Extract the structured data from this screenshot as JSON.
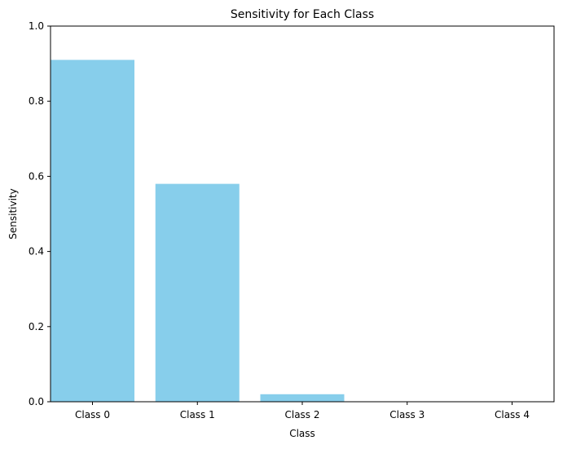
{
  "chart_data": {
    "type": "bar",
    "title": "Sensitivity for Each Class",
    "xlabel": "Class",
    "ylabel": "Sensitivity",
    "categories": [
      "Class 0",
      "Class 1",
      "Class 2",
      "Class 3",
      "Class 4"
    ],
    "values": [
      0.91,
      0.58,
      0.02,
      0.0,
      0.0
    ],
    "ylim": [
      0,
      1
    ],
    "yticks": [
      "0.0",
      "0.2",
      "0.4",
      "0.6",
      "0.8",
      "1.0"
    ],
    "bar_color": "#87CEEB",
    "grid": false,
    "legend": "none"
  }
}
